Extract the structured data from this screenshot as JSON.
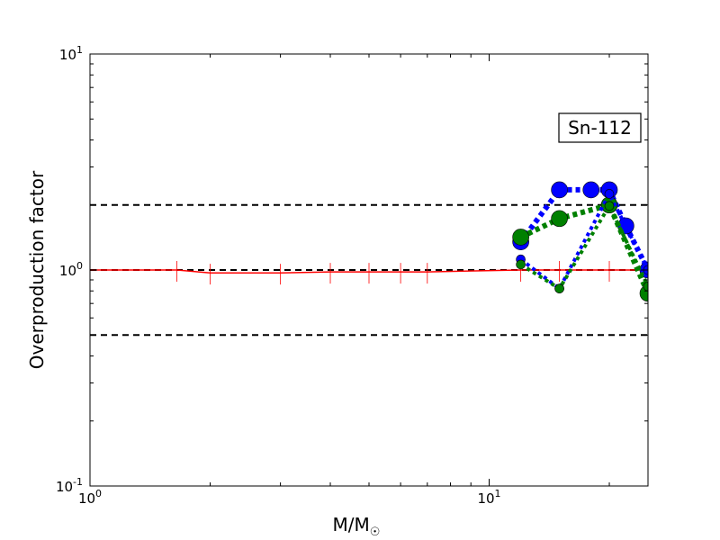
{
  "chart_data": {
    "type": "line",
    "xscale": "log",
    "yscale": "log",
    "xlim": [
      1,
      25
    ],
    "ylim": [
      0.1,
      10
    ],
    "xlabel": "M/M",
    "xlabel_subscript": "☉",
    "ylabel": "Overproduction factor",
    "annotation": "Sn-112",
    "x_ticks": [
      {
        "value": 1,
        "base": "10",
        "exp": "0"
      },
      {
        "value": 10,
        "base": "10",
        "exp": "1"
      }
    ],
    "y_ticks": [
      {
        "value": 0.1,
        "base": "10",
        "exp": "-1"
      },
      {
        "value": 1,
        "base": "10",
        "exp": "0"
      },
      {
        "value": 10,
        "base": "10",
        "exp": "1"
      }
    ],
    "reference_lines": [
      0.5,
      1,
      2
    ],
    "series": [
      {
        "color": "#ff0000",
        "style": "solid",
        "error_bars": true,
        "x": [
          1,
          1.65,
          2,
          3,
          4,
          5,
          6,
          7,
          12,
          15,
          20,
          25
        ],
        "y": [
          1.0,
          1.0,
          0.97,
          0.97,
          0.98,
          0.98,
          0.98,
          0.98,
          1.0,
          1.0,
          1.0,
          1.0
        ]
      },
      {
        "color": "#0000ff",
        "style": "dotted-thick",
        "marker_size": "large",
        "x": [
          12,
          15,
          18,
          20,
          22,
          25
        ],
        "y": [
          1.35,
          2.35,
          2.35,
          2.35,
          1.6,
          1.0
        ]
      },
      {
        "color": "#008000",
        "style": "dotted-thick",
        "marker_size": "large",
        "x": [
          12,
          15,
          20,
          25
        ],
        "y": [
          1.42,
          1.73,
          2.0,
          0.78
        ]
      },
      {
        "color": "#0000ff",
        "style": "dotted",
        "marker_size": "small",
        "x": [
          12,
          15,
          20,
          25
        ],
        "y": [
          1.12,
          0.82,
          2.25,
          1.0
        ]
      },
      {
        "color": "#008000",
        "style": "dotted",
        "marker_size": "small",
        "x": [
          12,
          15,
          20,
          25
        ],
        "y": [
          1.06,
          0.82,
          1.98,
          0.84
        ]
      }
    ]
  }
}
